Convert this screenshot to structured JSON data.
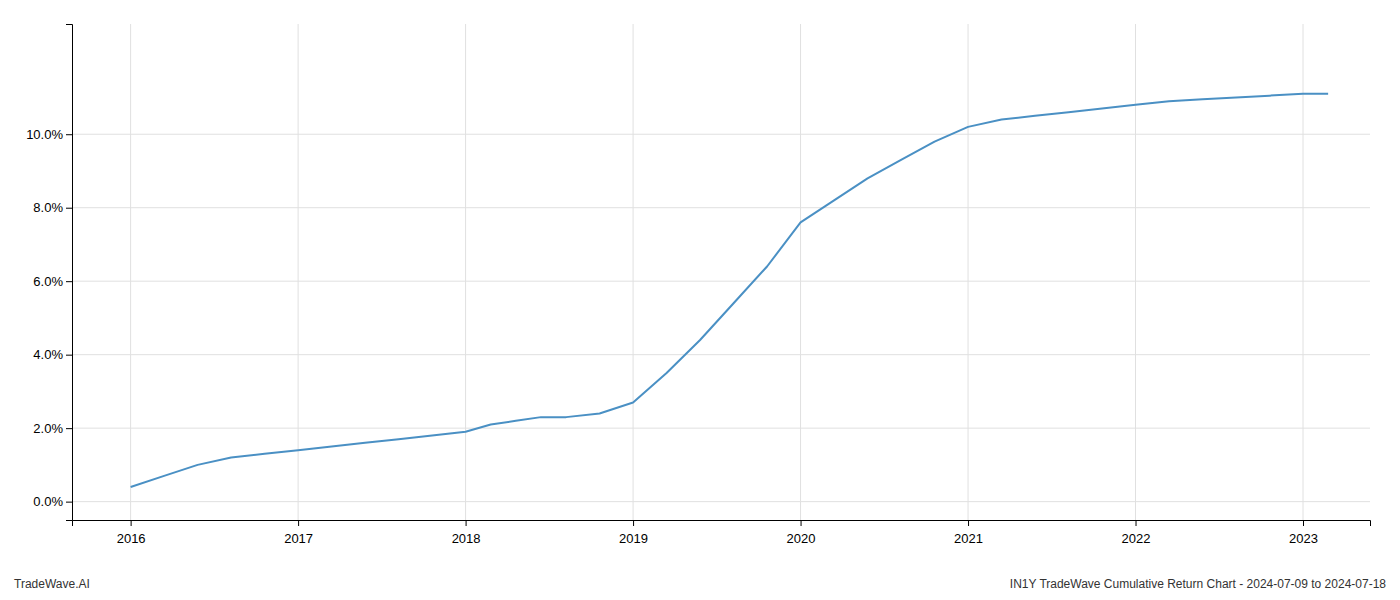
{
  "chart_data": {
    "type": "line",
    "x": [
      2016.0,
      2016.2,
      2016.4,
      2016.6,
      2016.8,
      2017.0,
      2017.2,
      2017.4,
      2017.6,
      2017.8,
      2018.0,
      2018.15,
      2018.3,
      2018.45,
      2018.6,
      2018.8,
      2019.0,
      2019.2,
      2019.4,
      2019.6,
      2019.8,
      2020.0,
      2020.2,
      2020.4,
      2020.6,
      2020.8,
      2021.0,
      2021.2,
      2021.4,
      2021.6,
      2021.8,
      2022.0,
      2022.2,
      2022.4,
      2022.6,
      2022.8,
      2023.0,
      2023.15
    ],
    "values": [
      0.004,
      0.007,
      0.01,
      0.012,
      0.013,
      0.014,
      0.015,
      0.016,
      0.017,
      0.018,
      0.019,
      0.021,
      0.022,
      0.023,
      0.023,
      0.024,
      0.027,
      0.035,
      0.044,
      0.054,
      0.064,
      0.076,
      0.082,
      0.088,
      0.093,
      0.098,
      0.102,
      0.104,
      0.105,
      0.106,
      0.107,
      0.108,
      0.109,
      0.1095,
      0.11,
      0.1105,
      0.111,
      0.111
    ],
    "color": "#4a90c4",
    "xlim": [
      2015.65,
      2023.4
    ],
    "ylim": [
      -0.005,
      0.13
    ],
    "xticks": [
      2016,
      2017,
      2018,
      2019,
      2020,
      2021,
      2022,
      2023
    ],
    "yticks": [
      {
        "value": 0.0,
        "label": "0.0%"
      },
      {
        "value": 0.02,
        "label": "2.0%"
      },
      {
        "value": 0.04,
        "label": "4.0%"
      },
      {
        "value": 0.06,
        "label": "6.0%"
      },
      {
        "value": 0.08,
        "label": "8.0%"
      },
      {
        "value": 0.1,
        "label": "10.0%"
      }
    ],
    "grid": true,
    "annotations": [
      "TradeWave.AI",
      "IN1Y TradeWave Cumulative Return Chart - 2024-07-09 to 2024-07-18"
    ]
  }
}
